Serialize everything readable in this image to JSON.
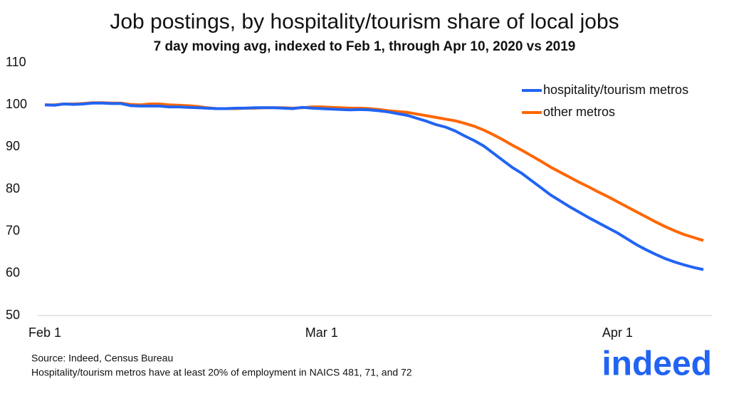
{
  "chart_data": {
    "type": "line",
    "title": "Job postings, by hospitality/tourism share of local jobs",
    "subtitle": "7 day moving avg, indexed to Feb 1, through Apr 10, 2020 vs 2019",
    "x": [
      "Feb 1",
      "Feb 2",
      "Feb 3",
      "Feb 4",
      "Feb 5",
      "Feb 6",
      "Feb 7",
      "Feb 8",
      "Feb 9",
      "Feb 10",
      "Feb 11",
      "Feb 12",
      "Feb 13",
      "Feb 14",
      "Feb 15",
      "Feb 16",
      "Feb 17",
      "Feb 18",
      "Feb 19",
      "Feb 20",
      "Feb 21",
      "Feb 22",
      "Feb 23",
      "Feb 24",
      "Feb 25",
      "Feb 26",
      "Feb 27",
      "Feb 28",
      "Feb 29",
      "Mar 1",
      "Mar 2",
      "Mar 3",
      "Mar 4",
      "Mar 5",
      "Mar 6",
      "Mar 7",
      "Mar 8",
      "Mar 9",
      "Mar 10",
      "Mar 11",
      "Mar 12",
      "Mar 13",
      "Mar 14",
      "Mar 15",
      "Mar 16",
      "Mar 17",
      "Mar 18",
      "Mar 19",
      "Mar 20",
      "Mar 21",
      "Mar 22",
      "Mar 23",
      "Mar 24",
      "Mar 25",
      "Mar 26",
      "Mar 27",
      "Mar 28",
      "Mar 29",
      "Mar 30",
      "Mar 31",
      "Apr 1",
      "Apr 2",
      "Apr 3",
      "Apr 4",
      "Apr 5",
      "Apr 6",
      "Apr 7",
      "Apr 8",
      "Apr 9",
      "Apr 10"
    ],
    "xticks": [
      "Feb 1",
      "Mar 1",
      "Apr 1"
    ],
    "series": [
      {
        "name": "hospitality/tourism metros",
        "color": "#2164f3",
        "values": [
          100,
          99.9,
          100.2,
          100.1,
          100.2,
          100.4,
          100.4,
          100.3,
          100.3,
          99.8,
          99.7,
          99.7,
          99.7,
          99.5,
          99.5,
          99.4,
          99.3,
          99.2,
          99.1,
          99.1,
          99.2,
          99.2,
          99.3,
          99.3,
          99.3,
          99.2,
          99.1,
          99.4,
          99.2,
          99.1,
          99.0,
          98.9,
          98.8,
          98.9,
          98.8,
          98.6,
          98.3,
          97.9,
          97.5,
          96.8,
          96.1,
          95.3,
          94.7,
          93.8,
          92.6,
          91.5,
          90.2,
          88.5,
          86.8,
          85.1,
          83.7,
          82.0,
          80.3,
          78.6,
          77.2,
          75.8,
          74.5,
          73.2,
          72.0,
          70.8,
          69.6,
          68.2,
          66.8,
          65.6,
          64.5,
          63.5,
          62.7,
          62.0,
          61.4,
          60.9
        ]
      },
      {
        "name": "other metros",
        "color": "#ff6600",
        "values": [
          100,
          100,
          100.2,
          100.2,
          100.3,
          100.5,
          100.5,
          100.4,
          100.4,
          100.1,
          100.0,
          100.2,
          100.2,
          100.0,
          99.9,
          99.8,
          99.6,
          99.3,
          99.1,
          99.1,
          99.1,
          99.2,
          99.2,
          99.3,
          99.3,
          99.3,
          99.2,
          99.3,
          99.5,
          99.5,
          99.4,
          99.3,
          99.2,
          99.2,
          99.1,
          98.9,
          98.6,
          98.4,
          98.2,
          97.8,
          97.4,
          97.0,
          96.6,
          96.2,
          95.6,
          94.9,
          94.0,
          92.9,
          91.7,
          90.4,
          89.2,
          87.9,
          86.6,
          85.2,
          84.0,
          82.8,
          81.6,
          80.5,
          79.3,
          78.2,
          77.0,
          75.8,
          74.6,
          73.4,
          72.2,
          71.1,
          70.1,
          69.2,
          68.5,
          67.8
        ]
      }
    ],
    "ylim": [
      50,
      110
    ],
    "yticks": [
      50,
      60,
      70,
      80,
      90,
      100,
      110
    ],
    "legend": "top-right",
    "source": "Source: Indeed, Census Bureau",
    "note": "Hospitality/tourism metros have at least 20% of employment in NAICS 481, 71, and 72",
    "logo": "indeed"
  }
}
